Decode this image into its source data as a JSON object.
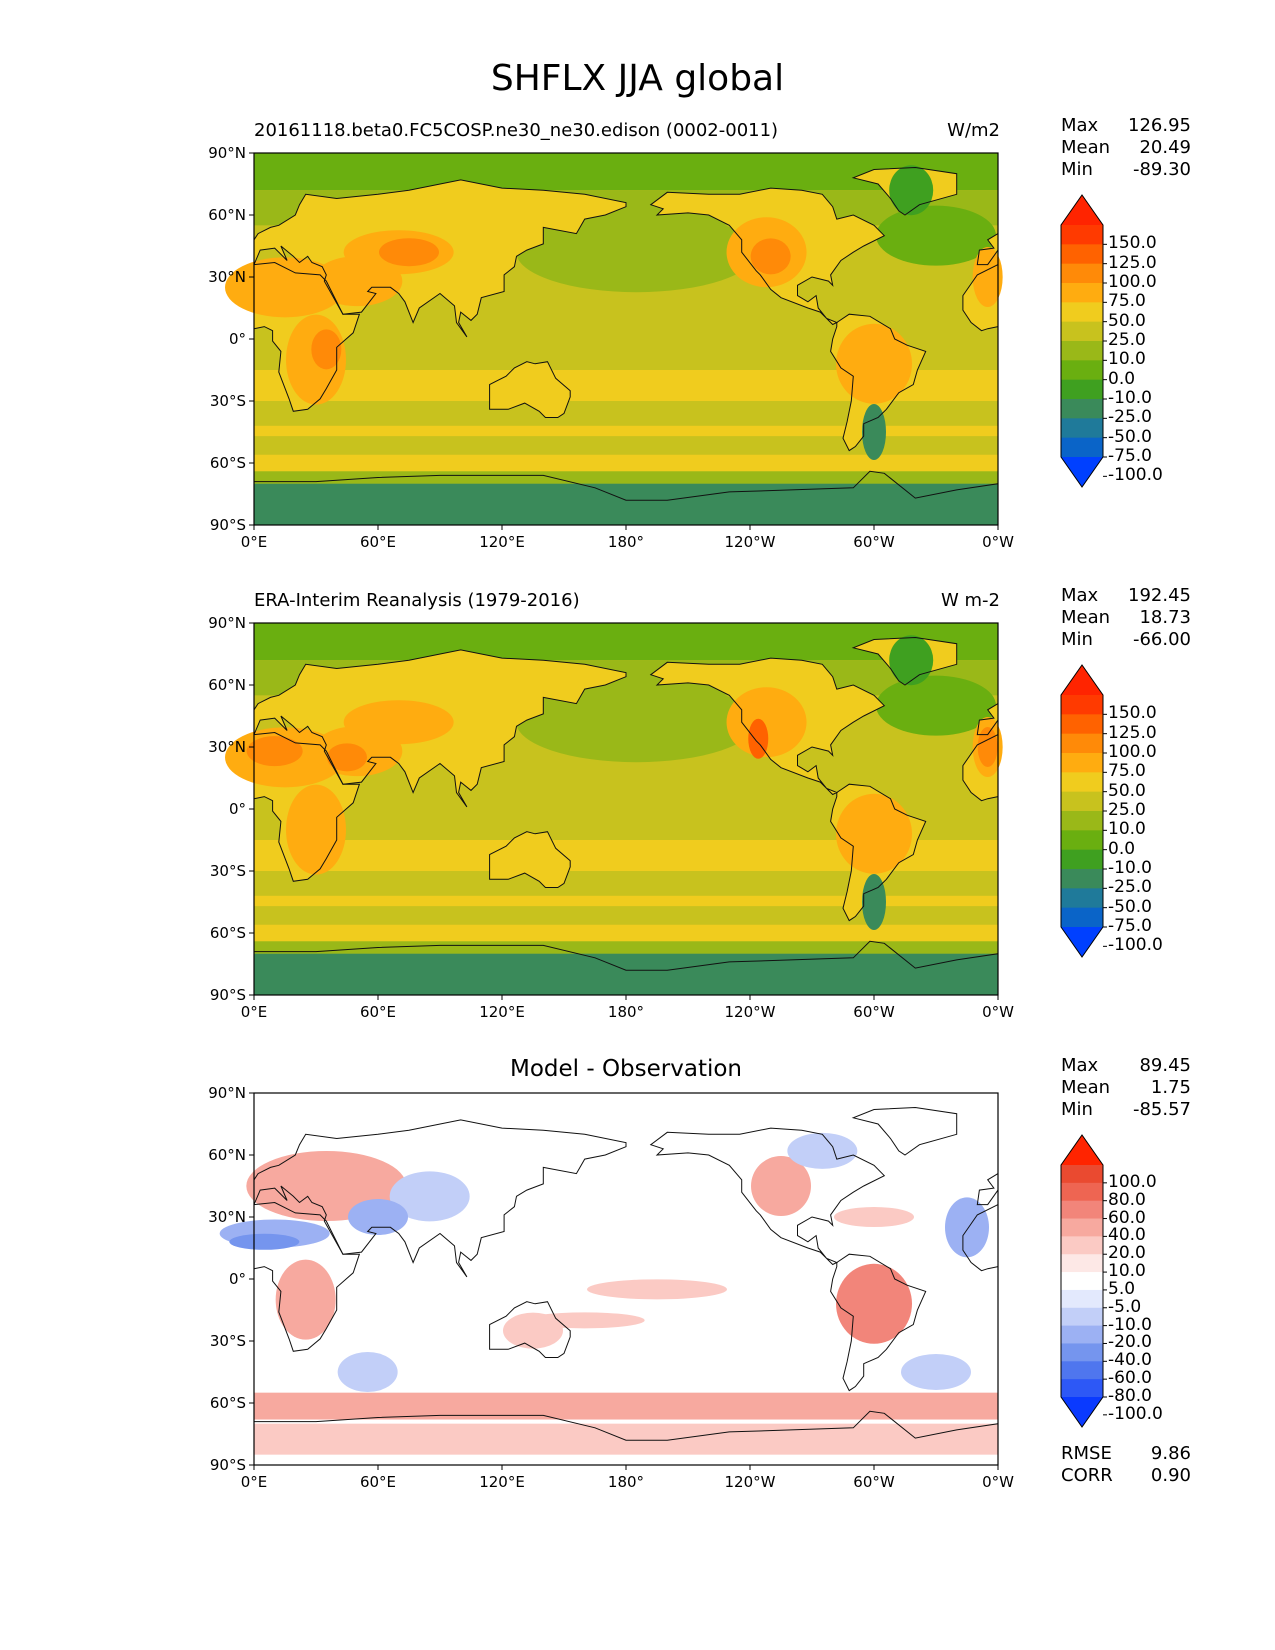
{
  "page_title": "SHFLX JJA global",
  "x_ticks": [
    "0°E",
    "60°E",
    "120°E",
    "180°",
    "120°W",
    "60°W",
    "0°W"
  ],
  "y_ticks": [
    "90°N",
    "60°N",
    "30°N",
    "0°",
    "30°S",
    "60°S",
    "90°S"
  ],
  "colors": {
    "main_levels": [
      "#0040ff",
      "#0a64c8",
      "#1f7a9a",
      "#3a8a5a",
      "#3fa020",
      "#6aaf10",
      "#9ab818",
      "#c8c21e",
      "#f0cc1e",
      "#ffac10",
      "#ff8a08",
      "#ff6200",
      "#ff3a00",
      "#ff2400"
    ],
    "diff_levels": [
      "#0a3aff",
      "#2d58f6",
      "#4f76ee",
      "#7595ee",
      "#9cb1f3",
      "#c2cff8",
      "#e3e9fd",
      "#ffffff",
      "#fde8e6",
      "#fbcac4",
      "#f7a99f",
      "#f2857a",
      "#ee6552",
      "#ea4a30",
      "#ff2400"
    ]
  },
  "panels": [
    {
      "left_title": "20161118.beta0.FC5COSP.ne30_ne30.edison (0002-0011)",
      "right_title": "W/m2",
      "center_title": "",
      "stats": [
        {
          "label": "Max",
          "value": "126.95"
        },
        {
          "label": "Mean",
          "value": "20.49"
        },
        {
          "label": "Min",
          "value": "-89.30"
        }
      ],
      "colorbar_labels": [
        "150.0",
        "125.0",
        "100.0",
        "75.0",
        "50.0",
        "25.0",
        "10.0",
        "0.0",
        "-10.0",
        "-25.0",
        "-50.0",
        "-75.0",
        "-100.0"
      ],
      "extra_stats": []
    },
    {
      "left_title": "ERA-Interim Reanalysis (1979-2016)",
      "right_title": "W m-2",
      "center_title": "",
      "stats": [
        {
          "label": "Max",
          "value": "192.45"
        },
        {
          "label": "Mean",
          "value": "18.73"
        },
        {
          "label": "Min",
          "value": "-66.00"
        }
      ],
      "colorbar_labels": [
        "150.0",
        "125.0",
        "100.0",
        "75.0",
        "50.0",
        "25.0",
        "10.0",
        "0.0",
        "-10.0",
        "-25.0",
        "-50.0",
        "-75.0",
        "-100.0"
      ],
      "extra_stats": []
    },
    {
      "left_title": "",
      "right_title": "",
      "center_title": "Model - Observation",
      "stats": [
        {
          "label": "Max",
          "value": "89.45"
        },
        {
          "label": "Mean",
          "value": "1.75"
        },
        {
          "label": "Min",
          "value": "-85.57"
        }
      ],
      "colorbar_labels": [
        "100.0",
        "80.0",
        "60.0",
        "40.0",
        "20.0",
        "10.0",
        "5.0",
        "-5.0",
        "-10.0",
        "-20.0",
        "-40.0",
        "-60.0",
        "-80.0",
        "-100.0"
      ],
      "extra_stats": [
        {
          "label": "RMSE",
          "value": "9.86"
        },
        {
          "label": "CORR",
          "value": "0.90"
        }
      ]
    }
  ]
}
